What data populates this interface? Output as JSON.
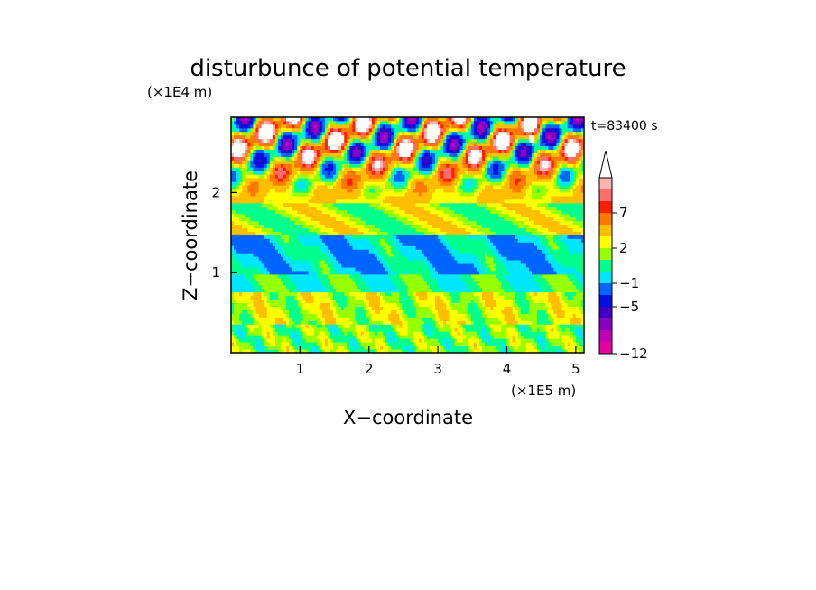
{
  "chart_data": {
    "type": "heatmap",
    "title": "disturbunce of potential temperature",
    "xlabel": "X−coordinate",
    "ylabel": "Z−coordinate",
    "x_unit": "(×1E5 m)",
    "y_unit": "(×1E4 m)",
    "time_label": "t=83400 s",
    "xlim": [
      0,
      5.12
    ],
    "ylim": [
      0,
      2.94
    ],
    "x_ticks": [
      {
        "value": 1,
        "label": "1"
      },
      {
        "value": 2,
        "label": "2"
      },
      {
        "value": 3,
        "label": "3"
      },
      {
        "value": 4,
        "label": "4"
      },
      {
        "value": 5,
        "label": "5"
      }
    ],
    "y_ticks": [
      {
        "value": 1,
        "label": "1"
      },
      {
        "value": 2,
        "label": "2"
      }
    ],
    "colorbar": {
      "levels": [
        {
          "value": -12,
          "color": "#e6009e"
        },
        {
          "value": -10,
          "color": "#c000b4"
        },
        {
          "value": -8,
          "color": "#8a00c0"
        },
        {
          "value": -6,
          "color": "#3c00c8"
        },
        {
          "value": -5,
          "color": "#0010e0"
        },
        {
          "value": -3,
          "color": "#0064ff"
        },
        {
          "value": -1,
          "color": "#00e6ff"
        },
        {
          "value": 0,
          "color": "#00ff8c"
        },
        {
          "value": 1,
          "color": "#96ff00"
        },
        {
          "value": 2,
          "color": "#ffff00"
        },
        {
          "value": 3,
          "color": "#ffbe00"
        },
        {
          "value": 5,
          "color": "#ff7800"
        },
        {
          "value": 7,
          "color": "#ff1e00"
        },
        {
          "value": 8,
          "color": "#ff6e6e"
        },
        {
          "value": 9,
          "color": "#ffb4b4"
        }
      ],
      "over_color": "#ffffff",
      "tick_labels": [
        {
          "value": 7,
          "label": "7"
        },
        {
          "value": 2,
          "label": "2"
        },
        {
          "value": -1,
          "label": "−1"
        },
        {
          "value": -5,
          "label": "−5"
        },
        {
          "value": -12,
          "label": "−12"
        }
      ]
    }
  }
}
